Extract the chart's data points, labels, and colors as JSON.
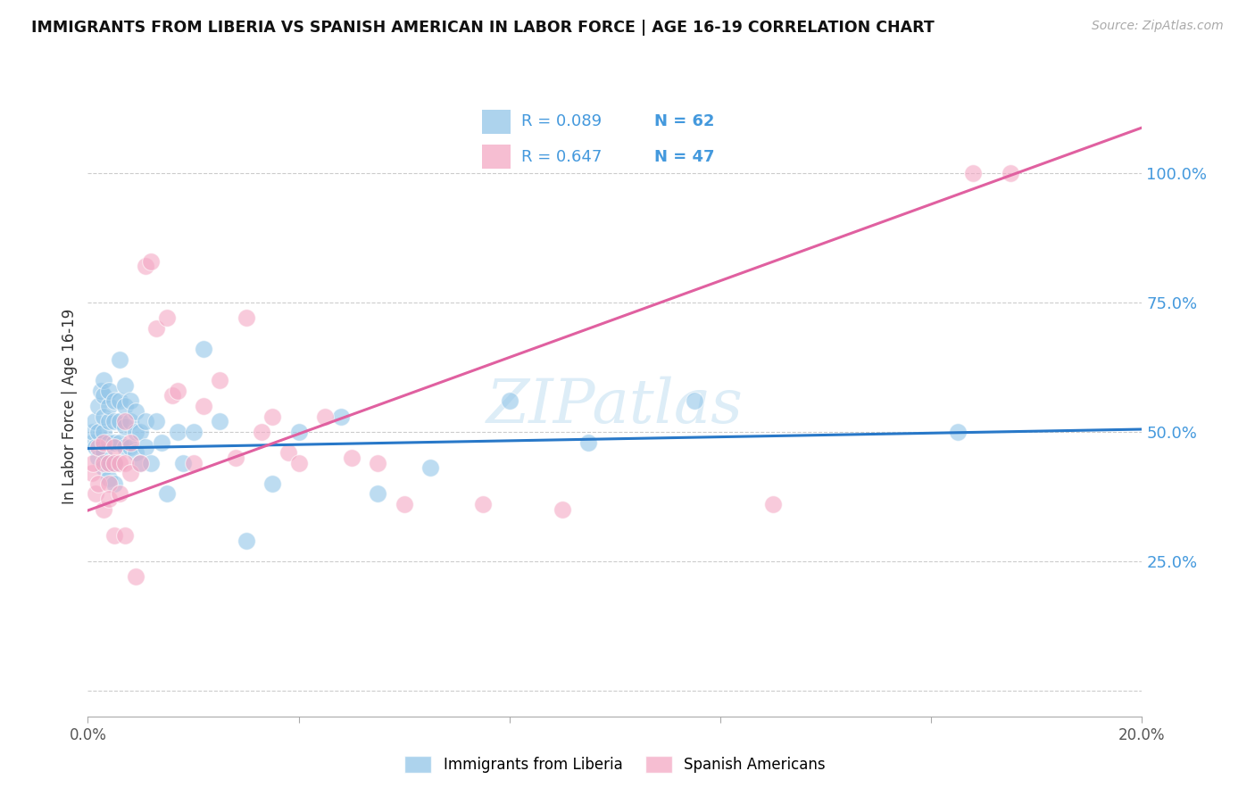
{
  "title": "IMMIGRANTS FROM LIBERIA VS SPANISH AMERICAN IN LABOR FORCE | AGE 16-19 CORRELATION CHART",
  "source": "Source: ZipAtlas.com",
  "ylabel": "In Labor Force | Age 16-19",
  "xlim": [
    0.0,
    0.2
  ],
  "ylim": [
    -0.05,
    1.15
  ],
  "yticks": [
    0.0,
    0.25,
    0.5,
    0.75,
    1.0
  ],
  "xtick_positions": [
    0.0,
    0.04,
    0.08,
    0.12,
    0.16,
    0.2
  ],
  "xtick_labels": [
    "0.0%",
    "",
    "",
    "",
    "",
    "20.0%"
  ],
  "blue_color": "#92c5e8",
  "pink_color": "#f4a8c4",
  "blue_line_color": "#2878c8",
  "pink_line_color": "#e060a0",
  "legend_text_color": "#4499dd",
  "right_axis_color": "#4499dd",
  "watermark": "ZIPatlas",
  "blue_x": [
    0.0008,
    0.001,
    0.0012,
    0.0015,
    0.002,
    0.002,
    0.002,
    0.0025,
    0.003,
    0.003,
    0.003,
    0.003,
    0.003,
    0.003,
    0.004,
    0.004,
    0.004,
    0.004,
    0.004,
    0.004,
    0.005,
    0.005,
    0.005,
    0.005,
    0.005,
    0.006,
    0.006,
    0.006,
    0.006,
    0.007,
    0.007,
    0.007,
    0.007,
    0.008,
    0.008,
    0.008,
    0.009,
    0.009,
    0.009,
    0.01,
    0.01,
    0.011,
    0.011,
    0.012,
    0.013,
    0.014,
    0.015,
    0.017,
    0.018,
    0.02,
    0.022,
    0.025,
    0.03,
    0.035,
    0.04,
    0.048,
    0.055,
    0.065,
    0.08,
    0.095,
    0.115,
    0.165
  ],
  "blue_y": [
    0.48,
    0.5,
    0.52,
    0.47,
    0.45,
    0.5,
    0.55,
    0.58,
    0.43,
    0.46,
    0.5,
    0.53,
    0.57,
    0.6,
    0.41,
    0.44,
    0.48,
    0.52,
    0.55,
    0.58,
    0.4,
    0.44,
    0.48,
    0.52,
    0.56,
    0.48,
    0.52,
    0.56,
    0.64,
    0.47,
    0.51,
    0.55,
    0.59,
    0.47,
    0.52,
    0.56,
    0.46,
    0.5,
    0.54,
    0.44,
    0.5,
    0.47,
    0.52,
    0.44,
    0.52,
    0.48,
    0.38,
    0.5,
    0.44,
    0.5,
    0.66,
    0.52,
    0.29,
    0.4,
    0.5,
    0.53,
    0.38,
    0.43,
    0.56,
    0.48,
    0.56,
    0.5
  ],
  "pink_x": [
    0.0008,
    0.001,
    0.0015,
    0.002,
    0.002,
    0.003,
    0.003,
    0.003,
    0.004,
    0.004,
    0.004,
    0.005,
    0.005,
    0.005,
    0.006,
    0.006,
    0.007,
    0.007,
    0.007,
    0.008,
    0.008,
    0.009,
    0.01,
    0.011,
    0.012,
    0.013,
    0.015,
    0.016,
    0.017,
    0.02,
    0.022,
    0.025,
    0.028,
    0.03,
    0.033,
    0.035,
    0.038,
    0.04,
    0.045,
    0.05,
    0.055,
    0.06,
    0.075,
    0.09,
    0.13,
    0.168,
    0.175
  ],
  "pink_y": [
    0.42,
    0.44,
    0.38,
    0.47,
    0.4,
    0.44,
    0.48,
    0.35,
    0.4,
    0.44,
    0.37,
    0.47,
    0.3,
    0.44,
    0.38,
    0.44,
    0.52,
    0.3,
    0.44,
    0.42,
    0.48,
    0.22,
    0.44,
    0.82,
    0.83,
    0.7,
    0.72,
    0.57,
    0.58,
    0.44,
    0.55,
    0.6,
    0.45,
    0.72,
    0.5,
    0.53,
    0.46,
    0.44,
    0.53,
    0.45,
    0.44,
    0.36,
    0.36,
    0.35,
    0.36,
    1.0,
    1.0
  ],
  "blue_intercept": 0.468,
  "blue_slope": 0.185,
  "pink_intercept": 0.348,
  "pink_slope": 3.7
}
